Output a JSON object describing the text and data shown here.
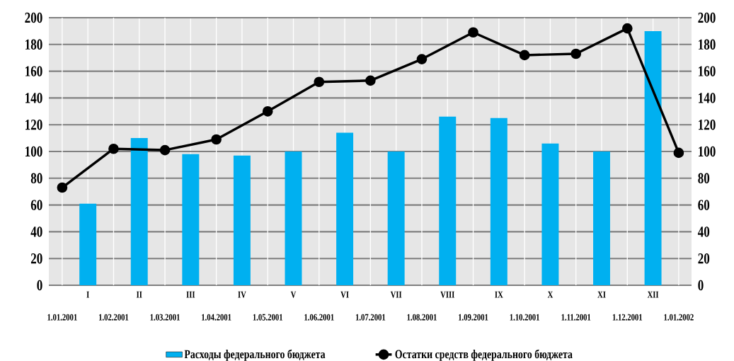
{
  "chart_data": {
    "type": "bar",
    "categories": [
      "1.01.2001",
      "I",
      "1.02.2001",
      "II",
      "1.03.2001",
      "III",
      "1.04.2001",
      "IV",
      "1.05.2001",
      "V",
      "1.06.2001",
      "VI",
      "1.07.2001",
      "VII",
      "1.08.2001",
      "VIII",
      "1.09.2001",
      "IX",
      "1.10.2001",
      "X",
      "1.11.2001",
      "XI",
      "1.12.2001",
      "XII",
      "1.01.2002"
    ],
    "series": [
      {
        "name": "Расходы федерального бюджета",
        "color": "#00b0f0",
        "values": [
          null,
          61,
          null,
          110,
          null,
          98,
          null,
          97,
          null,
          100,
          null,
          114,
          null,
          100,
          null,
          126,
          null,
          125,
          null,
          106,
          null,
          100,
          null,
          190,
          null
        ]
      },
      {
        "name": "Остатки средств федерального бюджета",
        "type": "line",
        "axis": "y2",
        "color": "#000000",
        "marker": "circle",
        "values": [
          73,
          null,
          102,
          null,
          101,
          null,
          109,
          null,
          130,
          null,
          152,
          null,
          153,
          null,
          169,
          null,
          189,
          null,
          172,
          null,
          173,
          null,
          192,
          null,
          99
        ]
      }
    ],
    "ylim": [
      0,
      200
    ],
    "yticks": [
      0,
      20,
      40,
      60,
      80,
      100,
      120,
      140,
      160,
      180,
      200
    ],
    "y2lim": [
      0,
      200
    ],
    "y2ticks": [
      0,
      20,
      40,
      60,
      80,
      100,
      120,
      140,
      160,
      180,
      200
    ],
    "grid": true,
    "legend": "bottom"
  }
}
